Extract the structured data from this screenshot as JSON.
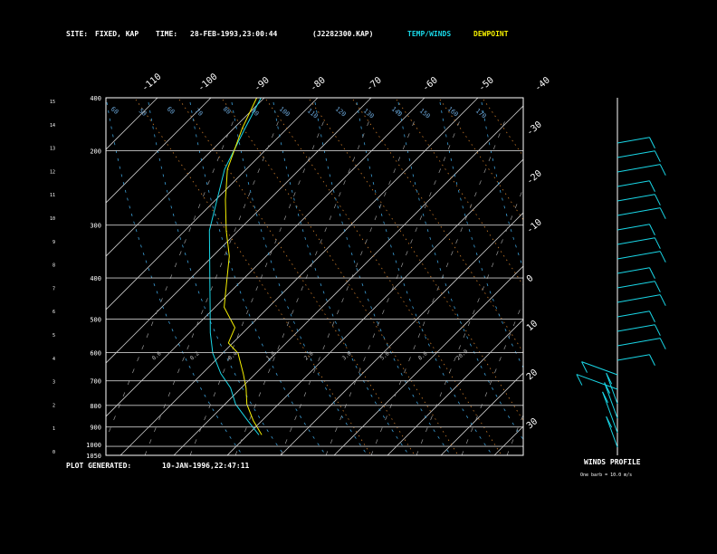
{
  "header": {
    "site_label": "SITE:",
    "site_value": "FIXED, KAP",
    "time_label": "TIME:",
    "time_value": "28-FEB-1993,23:00:44",
    "file_id": "(J2282300.KAP)",
    "legend_temp": "TEMP/WINDS",
    "legend_dew": "DEWPOINT"
  },
  "footer": {
    "generated_label": "PLOT GENERATED:",
    "generated_value": "10-JAN-1996,22:47:11",
    "winds_title": "WINDS PROFILE",
    "winds_note": "One barb = 10.0 m/s"
  },
  "colors": {
    "temp": "#19d6e6",
    "dew": "#f5f000",
    "isobar": "#c8c8c8",
    "isotherm": "#c8c8c8",
    "dry_adiabat": "#c87a2a",
    "moist_adiabat": "#3c9fd8",
    "mixing_ratio": "#9a9a9a",
    "frame": "#ffffff"
  },
  "chart_data": {
    "type": "line",
    "title": "",
    "pressure_levels": [
      "400",
      "200",
      "300",
      "400",
      "500",
      "600",
      "700",
      "800",
      "900",
      "1000",
      "1050"
    ],
    "height_ticks": [
      "15",
      "14",
      "13",
      "12",
      "11",
      "10",
      "9",
      "8",
      "7",
      "6",
      "5",
      "4",
      "3",
      "2",
      "1",
      "0"
    ],
    "top_temp_labels": [
      "-110",
      "-100",
      "-90",
      "-80",
      "-70",
      "-60",
      "-50",
      "-40"
    ],
    "right_temp_labels": [
      "-30",
      "-20",
      "-10",
      "0",
      "10",
      "20",
      "30"
    ],
    "moist_labels": [
      "0.6",
      "0.2",
      "0.4",
      "1.0",
      "2.0",
      "3.0",
      "5.0",
      "8.0",
      "20.0"
    ],
    "dry_labels": [
      "60",
      "50",
      "60",
      "70",
      "80",
      "90",
      "100",
      "110",
      "120",
      "130",
      "140",
      "150",
      "160",
      "170"
    ],
    "series": [
      {
        "name": "TEMP/WINDS",
        "points": [
          [
            0.2,
            138
          ],
          [
            0.34,
            120
          ],
          [
            0.5,
            100
          ],
          [
            0.66,
            85
          ],
          [
            0.8,
            68
          ],
          [
            1.0,
            48
          ],
          [
            1.2,
            32
          ],
          [
            1.45,
            14
          ],
          [
            1.7,
            -4
          ],
          [
            1.95,
            -22
          ],
          [
            2.2,
            -40
          ],
          [
            2.5,
            -56
          ],
          [
            2.8,
            -72
          ],
          [
            3.2,
            -86
          ],
          [
            3.5,
            -96
          ]
        ]
      },
      {
        "name": "DEWPOINT",
        "points": [
          [
            0.2,
            140
          ],
          [
            0.34,
            124
          ],
          [
            0.5,
            108
          ],
          [
            0.66,
            96
          ],
          [
            0.8,
            84
          ],
          [
            1.0,
            66
          ],
          [
            1.1,
            52
          ],
          [
            1.25,
            46
          ],
          [
            1.45,
            24
          ],
          [
            1.7,
            8
          ],
          [
            1.95,
            -8
          ],
          [
            2.2,
            -28
          ],
          [
            2.5,
            -50
          ],
          [
            2.8,
            -70
          ],
          [
            3.2,
            -88
          ],
          [
            3.5,
            -99
          ]
        ]
      }
    ],
    "wind_barbs_count": 22
  }
}
